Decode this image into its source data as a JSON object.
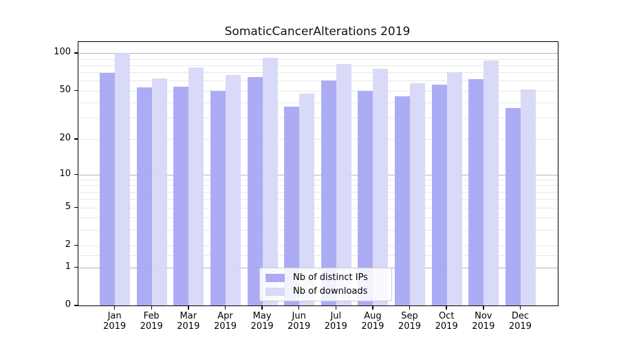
{
  "title": "SomaticCancerAlterations 2019",
  "chart_data": {
    "type": "bar",
    "title": "SomaticCancerAlterations 2019",
    "categories": [
      "Jan",
      "Feb",
      "Mar",
      "Apr",
      "May",
      "Jun",
      "Jul",
      "Aug",
      "Sep",
      "Oct",
      "Nov",
      "Dec"
    ],
    "category_year": "2019",
    "series": [
      {
        "name": "Nb of distinct IPs",
        "color": "#a6a6f4",
        "legend_color": "#aaaaf5",
        "values": [
          69,
          53,
          54,
          50,
          64,
          37,
          60,
          50,
          45,
          56,
          62,
          36
        ]
      },
      {
        "name": "Nb of downloads",
        "color": "#d6d6f8",
        "legend_color": "#d9d9f8",
        "values": [
          100,
          63,
          77,
          67,
          92,
          47,
          82,
          75,
          57,
          70,
          87,
          51
        ]
      }
    ],
    "yscale": "log1p",
    "ylim": [
      0,
      123
    ],
    "yticks": [
      100,
      50,
      20,
      10,
      5,
      2,
      1,
      0
    ],
    "major_gridline_values": [
      100,
      10,
      1
    ],
    "minor_gridline_values": [
      90,
      80,
      70,
      60,
      50,
      40,
      30,
      20,
      9,
      8,
      7,
      6,
      5,
      4,
      3,
      2,
      1.5
    ],
    "grid": "horizontal-only",
    "legend_position": "lower center",
    "colors": {
      "major_grid": "#b3b3b3",
      "minor_grid": "#e7e7e7",
      "axis": "#000000",
      "text": "#000000",
      "background": "#ffffff"
    }
  }
}
